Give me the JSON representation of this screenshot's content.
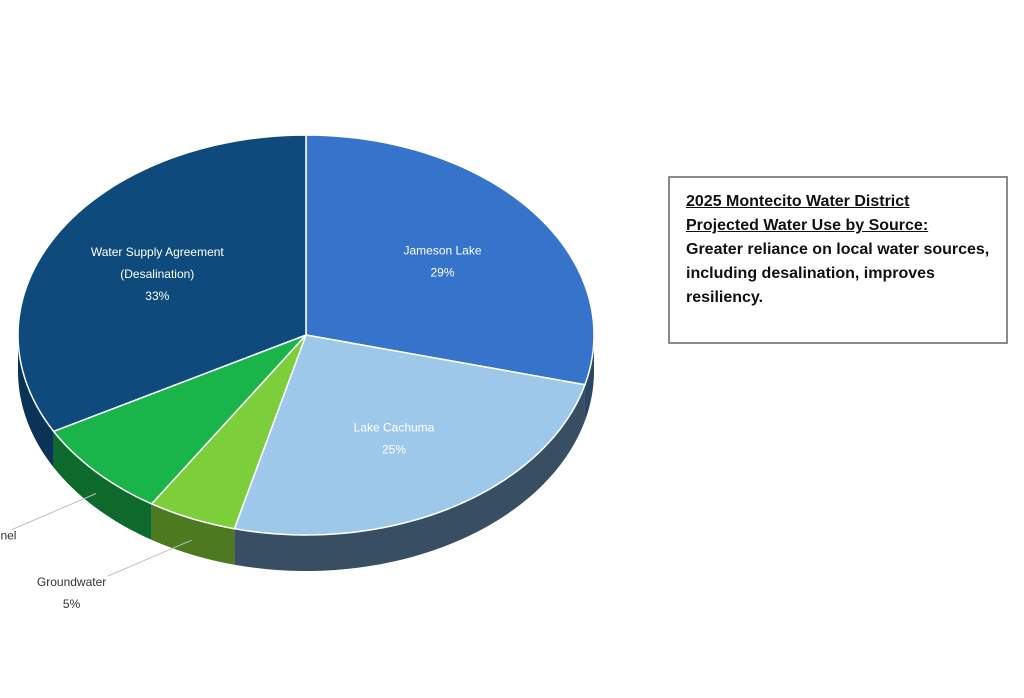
{
  "chart_data": {
    "type": "pie",
    "title": "",
    "slices": [
      {
        "label": "Jameson Lake",
        "value": 29,
        "value_label": "29%",
        "color": "#3674cc",
        "side": "#2a4766"
      },
      {
        "label": "Lake Cachuma",
        "value": 25,
        "value_label": "25%",
        "color": "#9dc8ea",
        "side": "#384e62"
      },
      {
        "label": "Groundwater",
        "value": 5,
        "value_label": "5%",
        "color": "#7ccf3a",
        "side": "#4d7a20"
      },
      {
        "label": "Doulton Tunnel",
        "value": 8,
        "value_label": "8%",
        "color": "#19b54a",
        "side": "#0e6a2c"
      },
      {
        "label": "Water Supply Agreement (Desalination)",
        "value": 33,
        "value_label": "33%",
        "color": "#0e4a7c",
        "side": "#0a3457"
      }
    ]
  },
  "callout": {
    "title_line1": "2025 Montecito Water District",
    "title_line2": "Projected Water Use by Source:",
    "body": "Greater reliance on local water sources, including desalination, improves resiliency."
  }
}
